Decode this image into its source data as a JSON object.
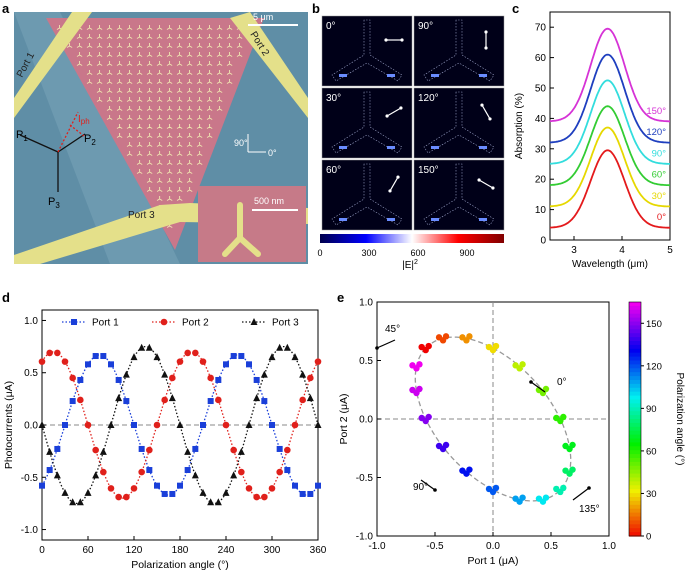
{
  "panels": {
    "a": {
      "label": "a",
      "scalebar": "5 μm",
      "inset_scalebar": "500 nm",
      "ports": [
        "Port 1",
        "Port 2",
        "Port 3"
      ],
      "vectors": [
        "P",
        "P",
        "P"
      ],
      "vector_subs": [
        "1",
        "2",
        "3"
      ],
      "iph": "I",
      "iph_sub": "ph",
      "pol_labels": [
        "90°",
        "0°"
      ],
      "colors": {
        "background": "#5f8ea6",
        "triangle": "#c9778a",
        "gold": "#e4e08a"
      }
    },
    "b": {
      "label": "b",
      "tiles": [
        "0°",
        "90°",
        "30°",
        "120°",
        "60°",
        "150°"
      ],
      "colorbar_ticks": [
        "0",
        "300",
        "600",
        "900"
      ],
      "colorbar_label": "|E|²",
      "colorbar_label_main": "|E|",
      "colorbar_label_sup": "2"
    },
    "c": {
      "label": "c"
    },
    "d": {
      "label": "d"
    },
    "e": {
      "label": "e"
    }
  },
  "chart_data": [
    {
      "panel": "c",
      "type": "line",
      "xlabel": "Wavelength (μm)",
      "ylabel": "Absorption (%)",
      "xlim": [
        2.5,
        5
      ],
      "ylim": [
        0,
        75
      ],
      "xticks": [
        3,
        4,
        5
      ],
      "yticks": [
        0,
        10,
        20,
        30,
        40,
        50,
        60,
        70
      ],
      "peak_x": 3.7,
      "series": [
        {
          "name": "0°",
          "color": "#e41a1c",
          "baseline": 4,
          "peak": 29.5
        },
        {
          "name": "30°",
          "color": "#e6d800",
          "baseline": 11,
          "peak": 37
        },
        {
          "name": "60°",
          "color": "#33cc33",
          "baseline": 18,
          "peak": 44
        },
        {
          "name": "90°",
          "color": "#33dddd",
          "baseline": 25,
          "peak": 52.5
        },
        {
          "name": "120°",
          "color": "#1f3fbf",
          "baseline": 32,
          "peak": 61
        },
        {
          "name": "150°",
          "color": "#d633d6",
          "baseline": 39,
          "peak": 69.5
        }
      ]
    },
    {
      "panel": "d",
      "type": "scatter",
      "xlabel": "Polarization angle (°)",
      "ylabel": "Photocurrents (μA)",
      "xlim": [
        0,
        360
      ],
      "ylim": [
        -1.1,
        1.1
      ],
      "xticks": [
        0,
        60,
        120,
        180,
        240,
        300,
        360
      ],
      "yticks": [
        -1.0,
        -0.5,
        0.0,
        0.5,
        1.0
      ],
      "legend": "top",
      "series": [
        {
          "name": "Port 1",
          "color": "#1a3fd9",
          "marker": "square",
          "amplitude": 0.67,
          "phase_deg": 150
        },
        {
          "name": "Port 2",
          "color": "#e0201b",
          "marker": "circle",
          "amplitude": 0.7,
          "phase_deg": 30
        },
        {
          "name": "Port 3",
          "color": "#111111",
          "marker": "triangle",
          "amplitude": 0.75,
          "phase_deg": 270
        }
      ]
    },
    {
      "panel": "e",
      "type": "scatter",
      "xlabel": "Port 1 (μA)",
      "ylabel": "Port 2 (μA)",
      "xlim": [
        -1.0,
        1.0
      ],
      "ylim": [
        -1.0,
        1.0
      ],
      "xticks": [
        -1.0,
        -0.5,
        0.0,
        0.5,
        1.0
      ],
      "yticks": [
        -1.0,
        -0.5,
        0.0,
        0.5,
        1.0
      ],
      "colorbar": {
        "label": "Polarization angle (°)",
        "min": 0,
        "max": 165,
        "ticks": [
          0,
          30,
          60,
          90,
          120,
          150
        ]
      },
      "annotations": [
        "45°",
        "0°",
        "90°",
        "135°"
      ],
      "x_amplitude": 0.67,
      "x_phase_deg": 150,
      "y_amplitude": 0.7,
      "y_phase_deg": 30
    }
  ]
}
